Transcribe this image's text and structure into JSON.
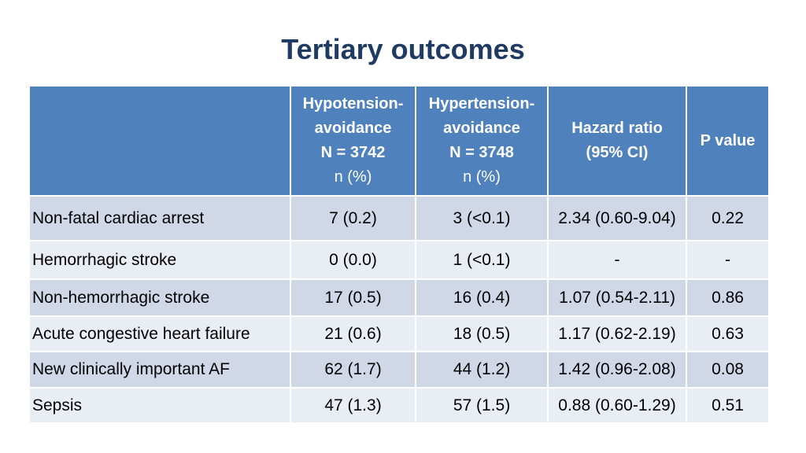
{
  "title": "Tertiary outcomes",
  "header": {
    "col1": {
      "line1": "Hypotension-",
      "line2": "avoidance",
      "line3": "N = 3742",
      "line4": "n (%)"
    },
    "col2": {
      "line1": "Hypertension-",
      "line2": "avoidance",
      "line3": "N = 3748",
      "line4": "n (%)"
    },
    "col3": {
      "line1": "Hazard ratio",
      "line2": "(95% CI)"
    },
    "col4": {
      "line1": "P value"
    }
  },
  "rows": [
    {
      "label": "Non-fatal cardiac arrest",
      "hypo": "7 (0.2)",
      "hyper": "3 (<0.1)",
      "hr": "2.34 (0.60-9.04)",
      "p": "0.22"
    },
    {
      "label": "Hemorrhagic stroke",
      "hypo": "0 (0.0)",
      "hyper": "1 (<0.1)",
      "hr": "-",
      "p": "-"
    },
    {
      "label": "Non-hemorrhagic stroke",
      "hypo": "17 (0.5)",
      "hyper": "16 (0.4)",
      "hr": "1.07 (0.54-2.11)",
      "p": "0.86"
    },
    {
      "label": "Acute congestive heart failure",
      "hypo": "21 (0.6)",
      "hyper": "18 (0.5)",
      "hr": "1.17 (0.62-2.19)",
      "p": "0.63"
    },
    {
      "label": "New clinically important AF",
      "hypo": "62 (1.7)",
      "hyper": "44 (1.2)",
      "hr": "1.42 (0.96-2.08)",
      "p": "0.08"
    },
    {
      "label": "Sepsis",
      "hypo": "47 (1.3)",
      "hyper": "57 (1.5)",
      "hr": "0.88 (0.60-1.29)",
      "p": "0.51"
    }
  ],
  "colors": {
    "header_bg": "#4f81bd",
    "row_dark": "#d0d8e8",
    "row_light": "#e9edf4",
    "title": "#1f3b64"
  }
}
